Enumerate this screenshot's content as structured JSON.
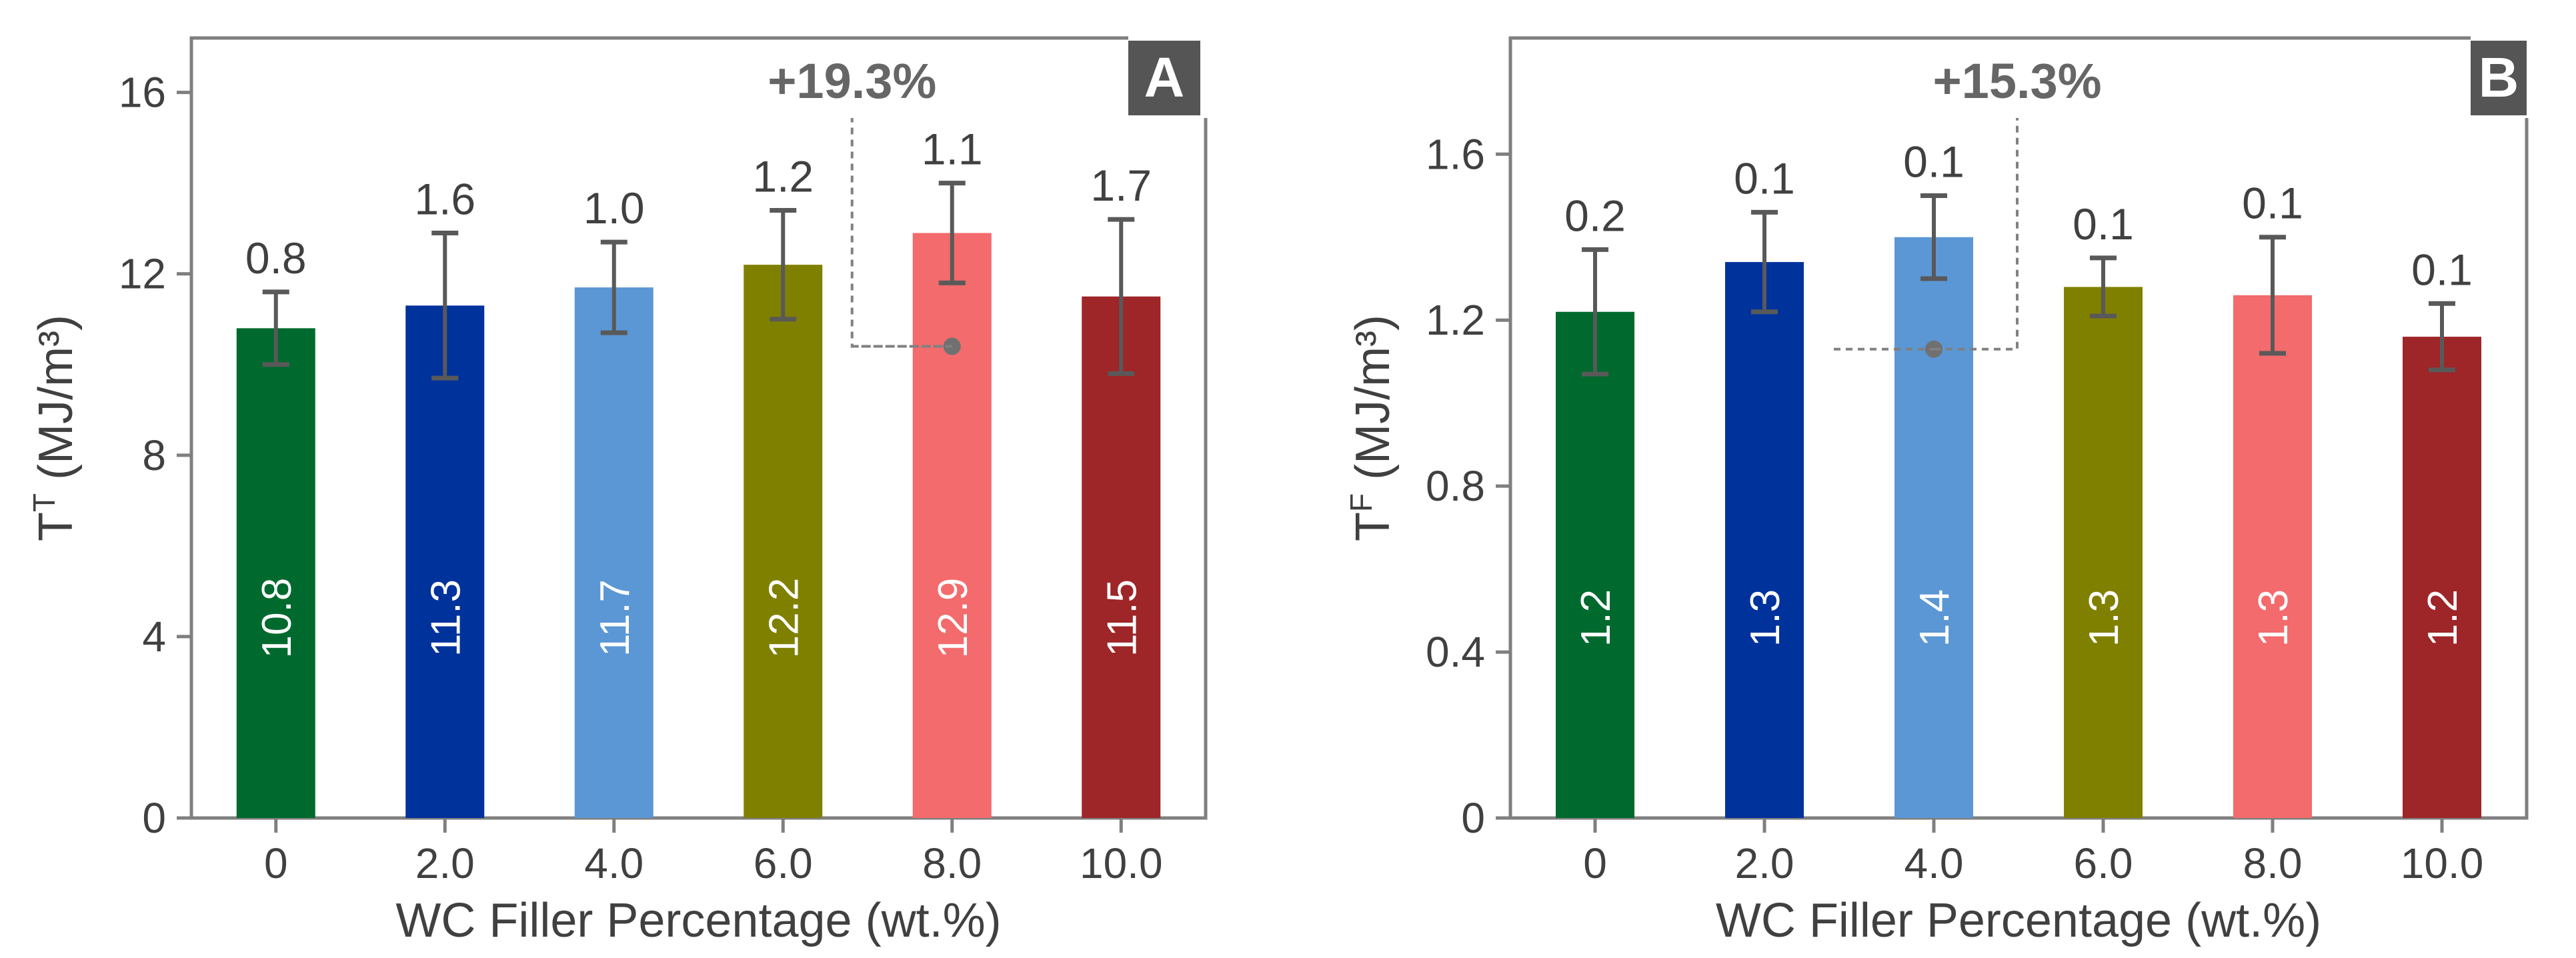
{
  "chart_data": [
    {
      "panel": "A",
      "type": "bar",
      "title": "",
      "xlabel": "WC Filler Percentage (wt.%)",
      "ylabel_main": "T",
      "ylabel_sup": "T",
      "ylabel_unit": " (MJ/m³)",
      "categories": [
        "0",
        "2.0",
        "4.0",
        "6.0",
        "8.0",
        "10.0"
      ],
      "values": [
        10.8,
        11.3,
        11.7,
        12.2,
        12.9,
        11.5
      ],
      "value_labels": [
        "10.8",
        "11.3",
        "11.7",
        "12.2",
        "12.9",
        "11.5"
      ],
      "errors": [
        0.8,
        1.6,
        1.0,
        1.2,
        1.1,
        1.7
      ],
      "error_labels": [
        "0.8",
        "1.6",
        "1.0",
        "1.2",
        "1.1",
        "1.7"
      ],
      "colors": [
        "#006a2e",
        "#00329c",
        "#5b97d5",
        "#808000",
        "#f36b6c",
        "#9e2528"
      ],
      "ylim": [
        0,
        17.2
      ],
      "yticks": [
        0,
        4,
        8,
        12,
        16
      ],
      "ytick_labels": [
        "0",
        "4",
        "8",
        "12",
        "16"
      ],
      "annotation": {
        "text": "+19.3%",
        "category_index": 4,
        "reference_value": 10.4
      },
      "grid": false
    },
    {
      "panel": "B",
      "type": "bar",
      "title": "",
      "xlabel": "WC Filler Percentage (wt.%)",
      "ylabel_main": "T",
      "ylabel_sup": "F",
      "ylabel_unit": " (MJ/m³)",
      "categories": [
        "0",
        "2.0",
        "4.0",
        "6.0",
        "8.0",
        "10.0"
      ],
      "values": [
        1.22,
        1.34,
        1.4,
        1.28,
        1.26,
        1.16
      ],
      "value_labels": [
        "1.2",
        "1.3",
        "1.4",
        "1.3",
        "1.3",
        "1.2"
      ],
      "errors": [
        0.15,
        0.12,
        0.1,
        0.07,
        0.14,
        0.08
      ],
      "error_labels": [
        "0.2",
        "0.1",
        "0.1",
        "0.1",
        "0.1",
        "0.1"
      ],
      "colors": [
        "#006a2e",
        "#00329c",
        "#5b97d5",
        "#808000",
        "#f36b6c",
        "#9e2528"
      ],
      "ylim": [
        0,
        1.88
      ],
      "yticks": [
        0,
        0.4,
        0.8,
        1.2,
        1.6
      ],
      "ytick_labels": [
        "0",
        "0.4",
        "0.8",
        "1.2",
        "1.6"
      ],
      "annotation": {
        "text": "+15.3%",
        "category_index": 2,
        "reference_value": 1.13
      },
      "grid": false
    }
  ]
}
